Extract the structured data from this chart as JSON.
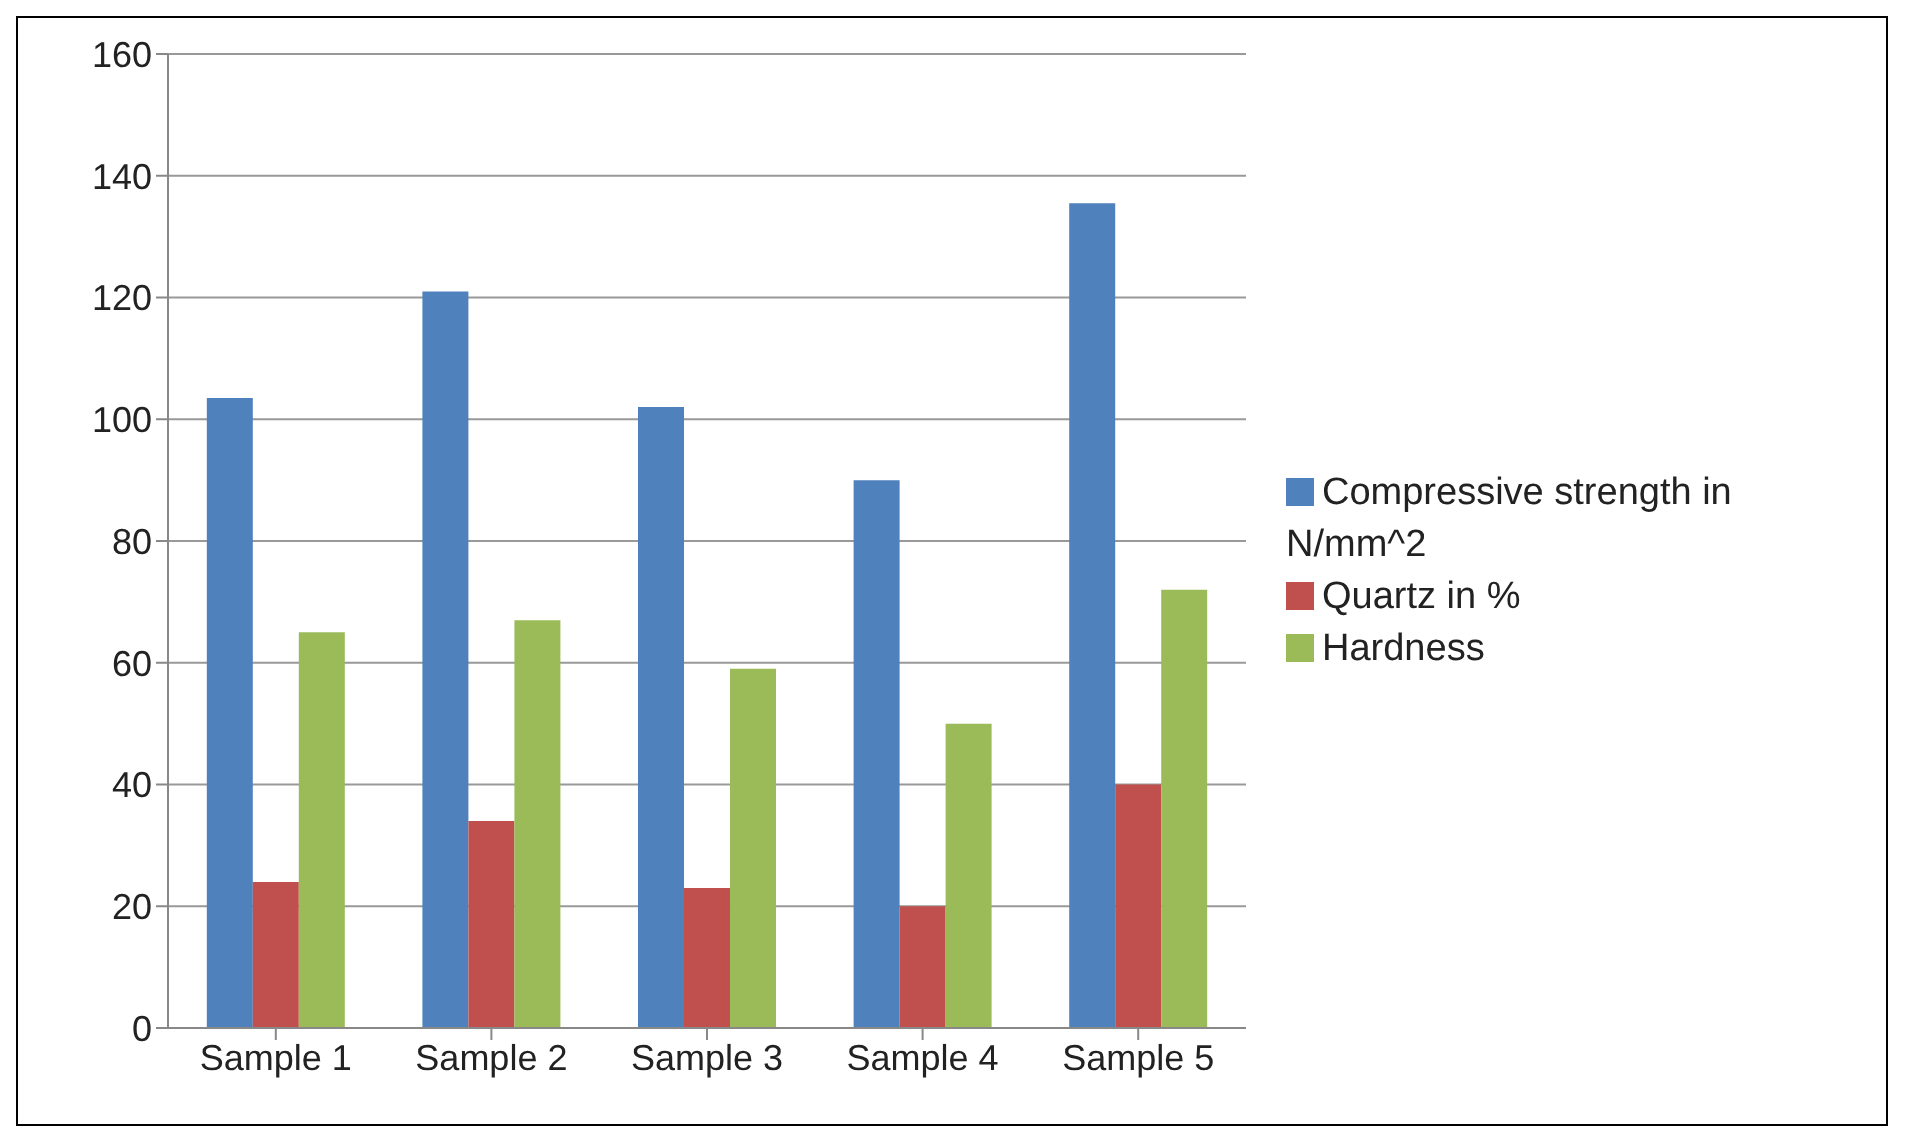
{
  "chart_data": {
    "type": "bar",
    "categories": [
      "Sample 1",
      "Sample 2",
      "Sample 3",
      "Sample 4",
      "Sample 5"
    ],
    "series": [
      {
        "name": "Compressive strength in N/mm^2",
        "color": "#4f81bd",
        "values": [
          103.5,
          121,
          102,
          90,
          135.5
        ]
      },
      {
        "name": "Quartz in %",
        "color": "#c0504d",
        "values": [
          24,
          34,
          23,
          20,
          40
        ]
      },
      {
        "name": "Hardness",
        "color": "#9bbb59",
        "values": [
          65,
          67,
          59,
          50,
          72
        ]
      }
    ],
    "ylim": [
      0,
      160
    ],
    "yticks": [
      0,
      20,
      40,
      60,
      80,
      100,
      120,
      140,
      160
    ],
    "grid": "y",
    "legend": "right"
  }
}
